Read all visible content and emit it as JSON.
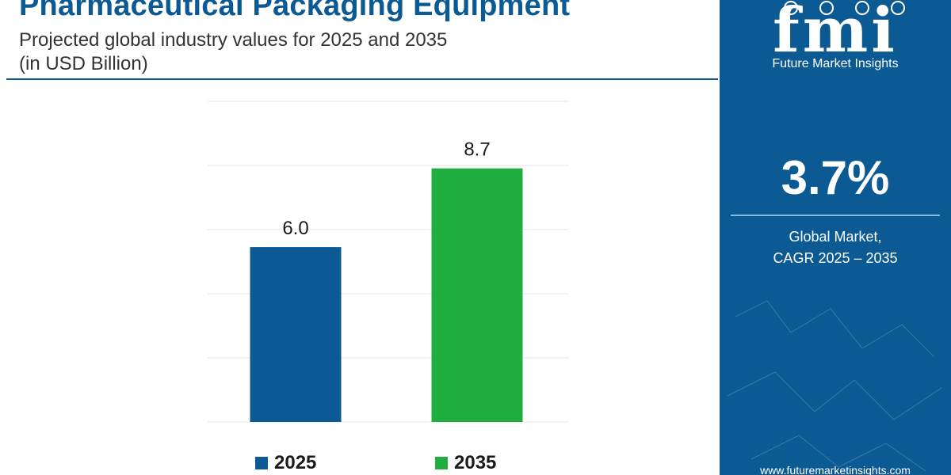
{
  "title": "Pharmaceutical Packaging Equipment",
  "subtitle": "Projected global industry values for 2025 and 2035",
  "unit": "(in USD Billion)",
  "colors": {
    "brand_blue": "#0b5a94",
    "bar_2025": "#0b5a94",
    "bar_2035": "#1fae3f",
    "grid": "#e6e6e6"
  },
  "chart_data": {
    "type": "bar",
    "categories": [
      "2025",
      "2035"
    ],
    "values": [
      6.0,
      8.7
    ],
    "value_labels": [
      "6.0",
      "8.7"
    ],
    "ylim": [
      0,
      11
    ],
    "grid": true,
    "legend": "bottom",
    "title": "Pharmaceutical Packaging Equipment",
    "xlabel": "",
    "ylabel": ""
  },
  "side_panel": {
    "logo_text": "fmi",
    "logo_tagline": "Future Market Insights",
    "cagr_value": "3.7%",
    "cagr_label_line1": "Global Market,",
    "cagr_label_line2": "CAGR 2025 – 2035",
    "website": "www.futuremarketinsights.com"
  }
}
